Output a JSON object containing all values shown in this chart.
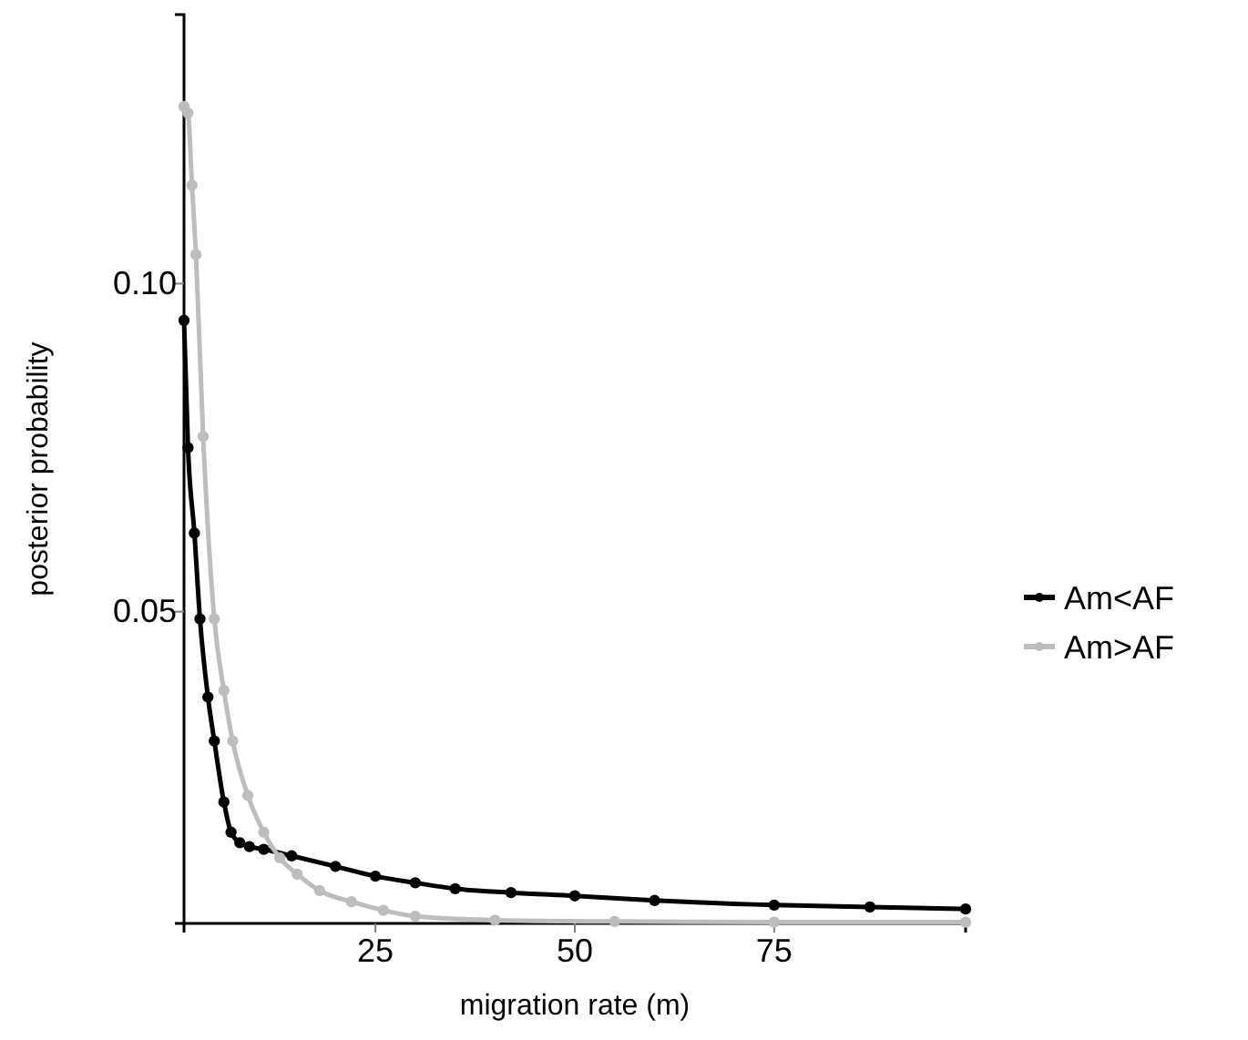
{
  "chart_data": {
    "type": "line",
    "xlabel": "migration rate (m)",
    "ylabel": "posterior probability",
    "xlim": [
      1,
      99
    ],
    "ylim": [
      0.0025,
      0.141
    ],
    "xticks": [
      25,
      50,
      75
    ],
    "yticks": [
      0.05,
      {
        "value": 0.1,
        "label": "0.10"
      }
    ],
    "grid": false,
    "legend": "right",
    "marker": "circle",
    "line_style": "solid",
    "series": [
      {
        "name": "Am<AF",
        "color": "#000000",
        "x": [
          1,
          1.5,
          2.3,
          3,
          4,
          4.8,
          6,
          6.9,
          8,
          9.2,
          11,
          14.5,
          20,
          25,
          30,
          35,
          42,
          50,
          60,
          75,
          87,
          99
        ],
        "values": [
          0.0944,
          0.075,
          0.062,
          0.0489,
          0.037,
          0.0303,
          0.021,
          0.0164,
          0.0148,
          0.0142,
          0.0138,
          0.0128,
          0.0112,
          0.0097,
          0.0087,
          0.0078,
          0.0072,
          0.0067,
          0.006,
          0.0053,
          0.005,
          0.0047
        ]
      },
      {
        "name": "Am>AF",
        "color": "#bdbdbd",
        "x": [
          1,
          1.5,
          2,
          2.5,
          3.4,
          4.8,
          6,
          7.1,
          9,
          11,
          13,
          15.2,
          18,
          22,
          26,
          30,
          40,
          55,
          75,
          99
        ],
        "values": [
          0.127,
          0.126,
          0.115,
          0.1044,
          0.0767,
          0.0489,
          0.038,
          0.0303,
          0.022,
          0.0164,
          0.0125,
          0.01,
          0.0075,
          0.0058,
          0.0045,
          0.0036,
          0.003,
          0.0028,
          0.0027,
          0.0027
        ]
      }
    ]
  }
}
